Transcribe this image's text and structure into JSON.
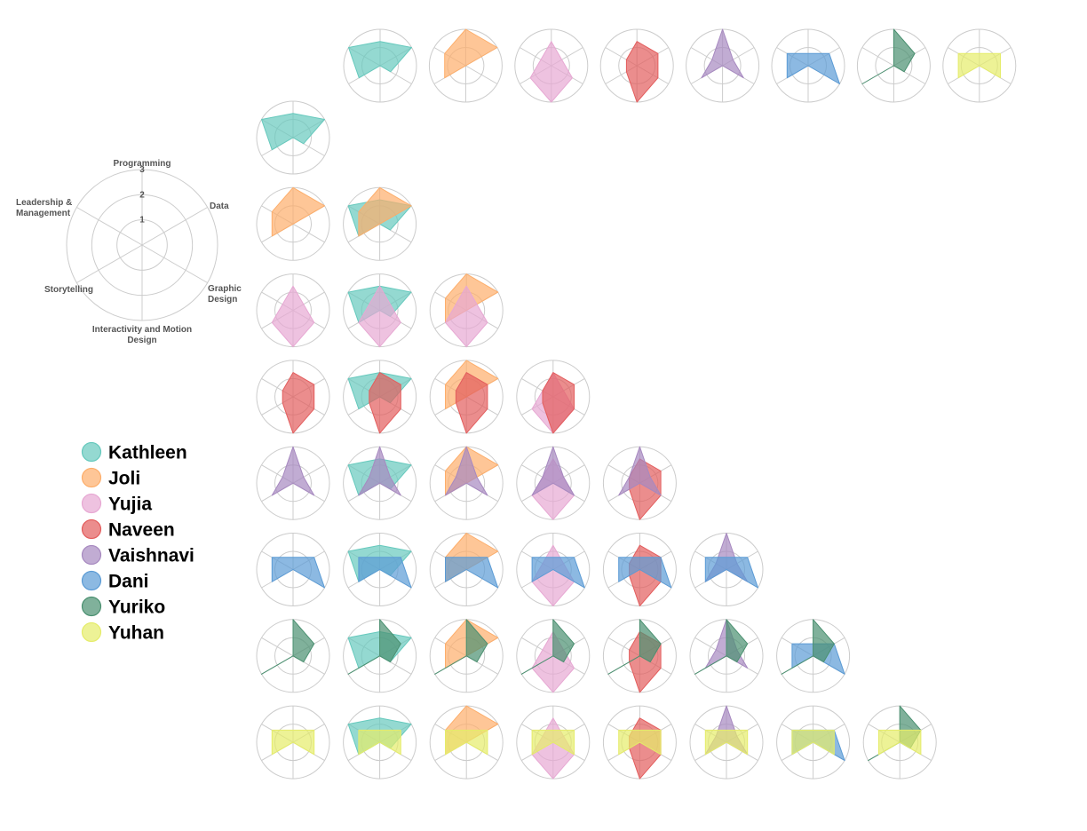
{
  "chart_data": {
    "type": "radar-matrix",
    "axes": [
      "Programming",
      "Data",
      "Graphic Design",
      "Interactivity and Motion Design",
      "Storytelling",
      "Leadership & Management"
    ],
    "axis_label_lines": [
      [
        "Programming"
      ],
      [
        "Data"
      ],
      [
        "Graphic",
        "Design"
      ],
      [
        "Interactivity and Motion",
        "Design"
      ],
      [
        "Storytelling"
      ],
      [
        "Leadership &",
        "Management"
      ]
    ],
    "r_range": [
      0,
      3
    ],
    "ticks": [
      "1",
      "2",
      "3"
    ],
    "people": [
      {
        "name": "Kathleen",
        "color": "#66c9bd",
        "values": [
          2,
          3,
          1,
          0,
          2,
          3
        ]
      },
      {
        "name": "Joli",
        "color": "#fdae6b",
        "values": [
          3,
          3,
          0,
          0,
          2,
          2
        ]
      },
      {
        "name": "Yujia",
        "color": "#e7a8d3",
        "values": [
          2,
          1,
          2,
          3,
          2,
          1
        ]
      },
      {
        "name": "Naveen",
        "color": "#e35d5d",
        "values": [
          2,
          2,
          2,
          3,
          1,
          1
        ]
      },
      {
        "name": "Vaishnavi",
        "color": "#a789c0",
        "values": [
          3,
          1,
          2,
          0,
          2,
          1
        ]
      },
      {
        "name": "Dani",
        "color": "#5b9bd5",
        "values": [
          1,
          2,
          3,
          0,
          2,
          2
        ]
      },
      {
        "name": "Yuriko",
        "color": "#4a9070",
        "values": [
          3,
          2,
          1,
          0,
          3,
          0
        ]
      },
      {
        "name": "Yuhan",
        "color": "#e5ec6a",
        "values": [
          1,
          2,
          2,
          0,
          2,
          2
        ]
      }
    ]
  }
}
